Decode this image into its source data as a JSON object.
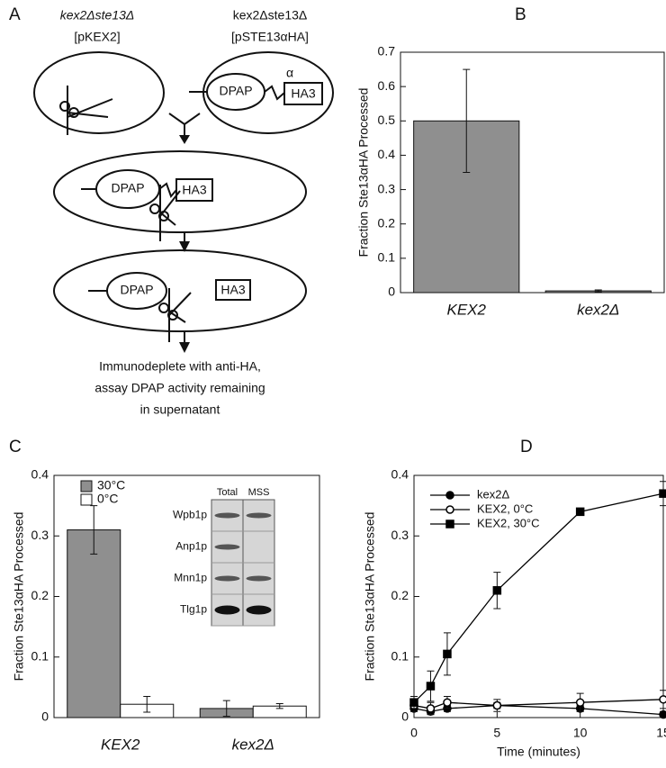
{
  "diagram": {
    "panel_label": "A",
    "cell1": {
      "strain": "kex2Δste13Δ",
      "plasmid": "[pKEX2]"
    },
    "cell2": {
      "strain": "kex2Δste13Δ",
      "plasmid": "[pSTE13αHA]",
      "dpap": "DPAP",
      "alpha": "α",
      "ha": "HA3"
    },
    "cell3": {
      "dpap": "DPAP",
      "ha": "HA3"
    },
    "cell4": {
      "dpap": "DPAP",
      "ha": "HA3"
    },
    "caption": [
      "Immunodeplete with anti-HA,",
      "assay DPAP activity remaining",
      "in supernatant"
    ]
  },
  "chart_data": [
    {
      "type": "bar",
      "panel_label": "B",
      "ylabel": "Fraction Ste13αHA Processed",
      "categories": [
        "KEX2",
        "kex2Δ"
      ],
      "values": [
        0.5,
        0.005
      ],
      "errors": [
        0.15,
        0.003
      ],
      "color": "#8f8f8f",
      "ylim": [
        0,
        0.7
      ],
      "yticks": [
        0,
        0.1,
        0.2,
        0.3,
        0.4,
        0.5,
        0.6,
        0.7
      ]
    },
    {
      "type": "bar",
      "panel_label": "C",
      "ylabel": "Fraction Ste13αHA Processed",
      "categories": [
        "KEX2",
        "kex2Δ"
      ],
      "series": [
        {
          "name": "30°C",
          "color": "#8f8f8f",
          "values": [
            0.31,
            0.015
          ],
          "errors": [
            0.04,
            0.013
          ]
        },
        {
          "name": "0°C",
          "color": "#ffffff",
          "values": [
            0.022,
            0.019
          ],
          "errors": [
            0.013,
            0.004
          ]
        }
      ],
      "ylim": [
        0,
        0.4
      ],
      "yticks": [
        0,
        0.1,
        0.2,
        0.3,
        0.4
      ],
      "legend": "upper left",
      "inset": {
        "columns": [
          "Total",
          "MSS"
        ],
        "rows": [
          "Wpb1p",
          "Anp1p",
          "Mnn1p",
          "Tlg1p"
        ]
      }
    },
    {
      "type": "line",
      "panel_label": "D",
      "ylabel": "Fraction Ste13αHA Processed",
      "xlabel": "Time (minutes)",
      "x": [
        0,
        1,
        2,
        5,
        10,
        15
      ],
      "series": [
        {
          "name": "kex2Δ",
          "color": "#000000",
          "marker": "circle",
          "filled": true,
          "values": [
            0.015,
            0.01,
            0.015,
            0.02,
            0.015,
            0.005
          ],
          "errors": [
            0.005,
            0.005,
            0.005,
            0.005,
            0.005,
            0.005
          ]
        },
        {
          "name": "KEX2, 0°C",
          "color": "#000000",
          "marker": "circle",
          "filled": false,
          "values": [
            0.02,
            0.015,
            0.025,
            0.02,
            0.025,
            0.03
          ],
          "errors": [
            0.01,
            0.01,
            0.01,
            0.01,
            0.015,
            0.015
          ]
        },
        {
          "name": "KEX2, 30°C",
          "color": "#000000",
          "marker": "square",
          "filled": true,
          "values": [
            0.025,
            0.052,
            0.105,
            0.21,
            0.34,
            0.37
          ],
          "errors": [
            0.01,
            0.025,
            0.035,
            0.03,
            0,
            0.02
          ]
        }
      ],
      "xlim": [
        0,
        15
      ],
      "xticks": [
        0,
        5,
        10,
        15
      ],
      "ylim": [
        0,
        0.4
      ],
      "yticks": [
        0,
        0.1,
        0.2,
        0.3,
        0.4
      ],
      "legend": "upper left"
    }
  ]
}
